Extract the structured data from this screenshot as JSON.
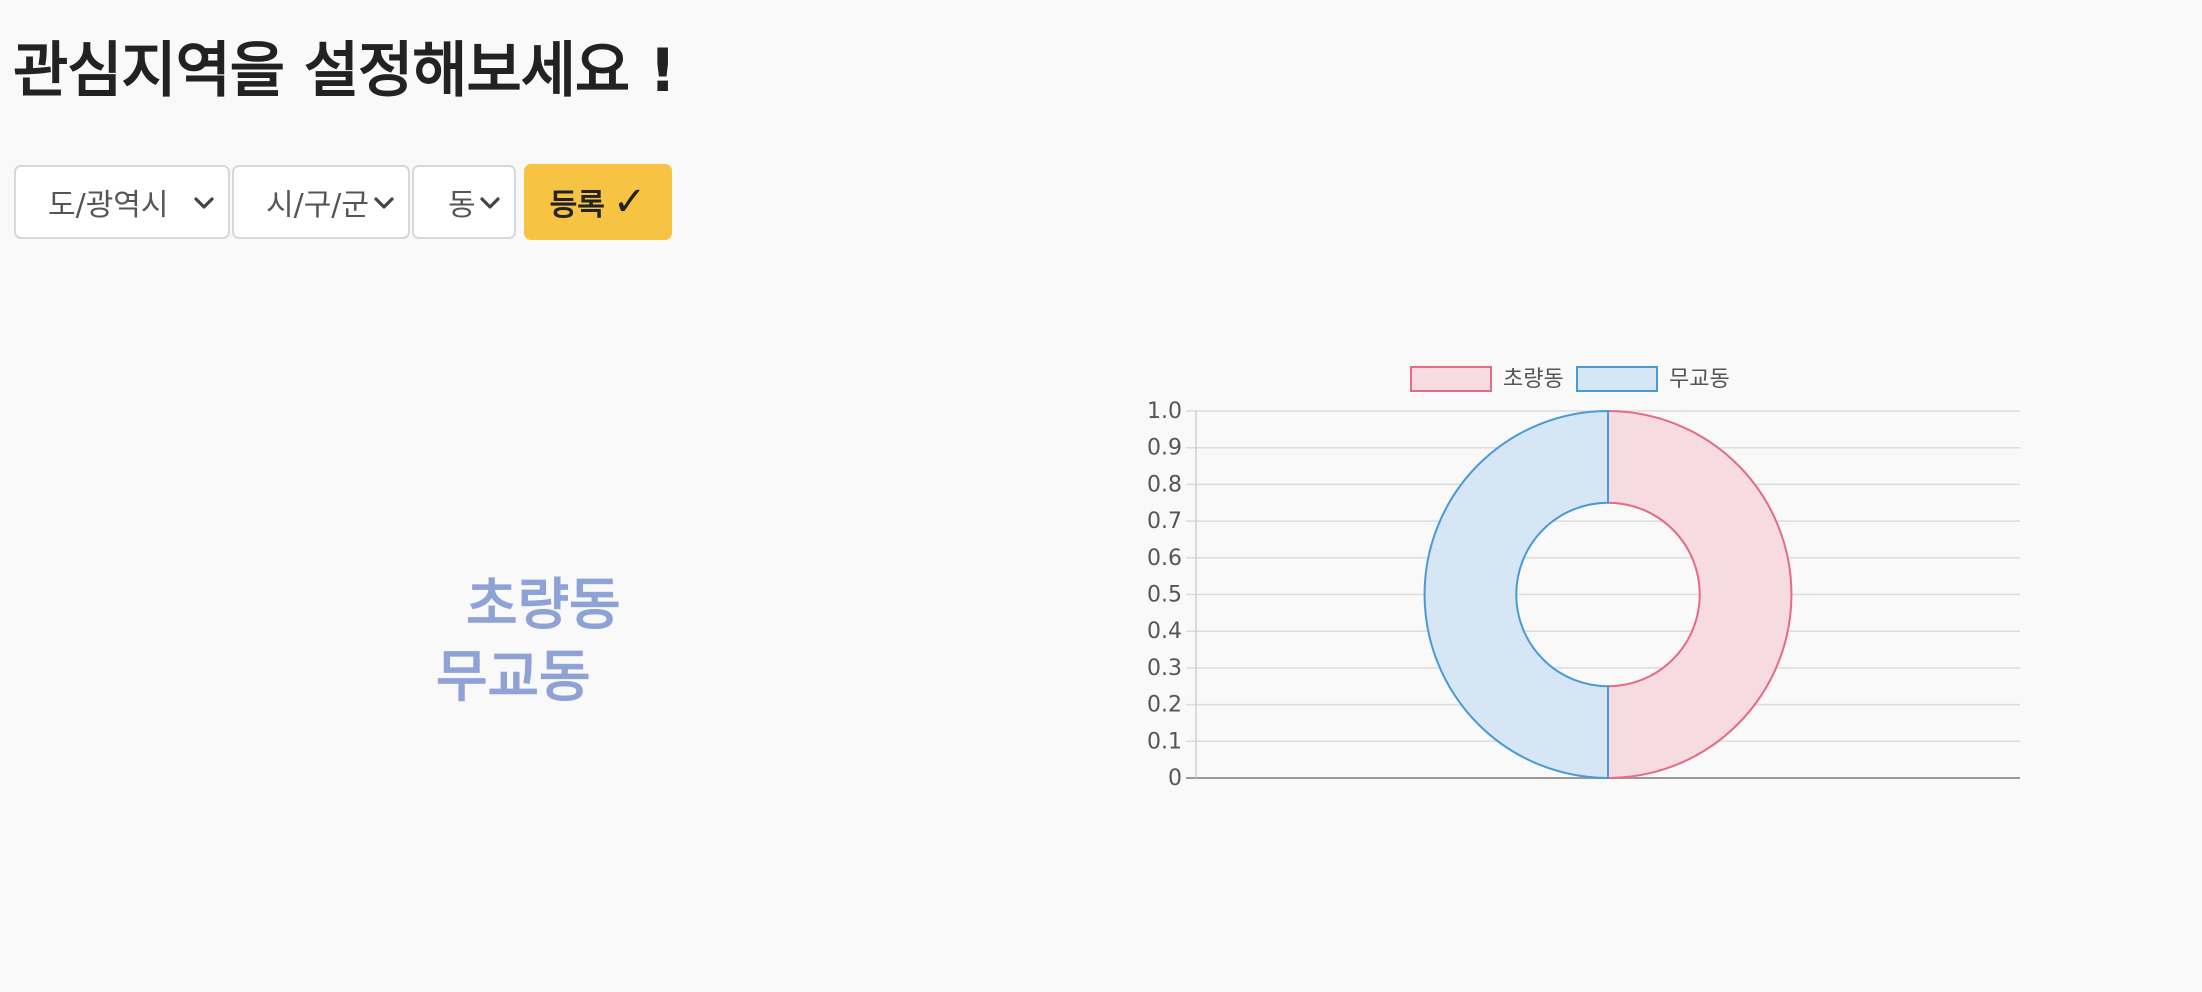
{
  "page": {
    "title": "관심지역을 설정해보세요 !"
  },
  "controls": {
    "province_select": {
      "selected": "도/광역시",
      "icon": "chevron-down-icon"
    },
    "city_select": {
      "selected": "시/구/군",
      "icon": "chevron-down-icon"
    },
    "dong_select": {
      "selected": "동",
      "icon": "chevron-down-icon"
    },
    "register_button": {
      "label": "등록",
      "icon": "✓",
      "color": "#f7c342"
    }
  },
  "word_cloud": {
    "words": [
      "초량동",
      "무교동"
    ],
    "color": "#8ea2d6"
  },
  "chart_data": {
    "type": "doughnut",
    "labels": [
      "초량동",
      "무교동"
    ],
    "values": [
      1,
      1
    ],
    "colors": {
      "fills": [
        "#f6dbe0",
        "#d6e6f5"
      ],
      "borders": [
        "#e56b86",
        "#4a9ad7"
      ]
    },
    "legend": {
      "position": "top",
      "entries": [
        "초량동",
        "무교동"
      ]
    },
    "y_axis": {
      "ylim": [
        0,
        1.0
      ],
      "ticks": [
        "1.0",
        "0.9",
        "0.8",
        "0.7",
        "0.6",
        "0.5",
        "0.4",
        "0.3",
        "0.2",
        "0.1",
        "0"
      ]
    },
    "grid": true
  }
}
